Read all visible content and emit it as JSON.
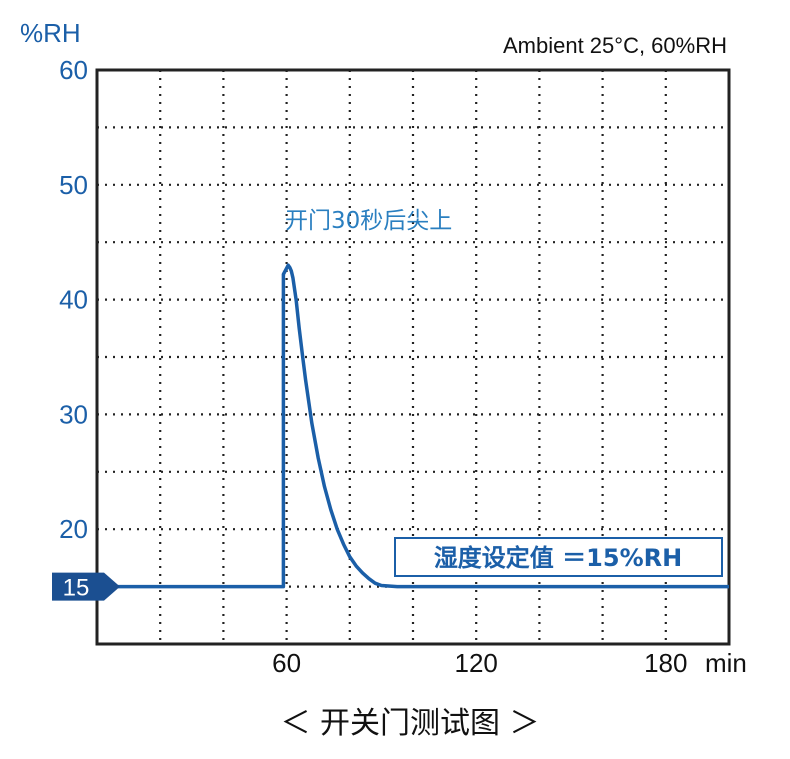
{
  "chart_data": {
    "type": "line",
    "y_unit_label": "%RH",
    "x_unit_label": "min",
    "ambient_note": "Ambient 25°C, 60%RH",
    "xlim": [
      0,
      200
    ],
    "ylim": [
      10,
      60
    ],
    "xticks": [
      60,
      120,
      180
    ],
    "yticks": [
      20,
      30,
      40,
      50,
      60
    ],
    "x_gridlines": [
      20,
      40,
      60,
      80,
      100,
      120,
      140,
      160,
      180
    ],
    "y_gridlines": [
      15,
      20,
      25,
      30,
      35,
      40,
      45,
      50,
      55
    ],
    "grid": true,
    "series": [
      {
        "color": "#1b5fa8",
        "x": [
          0,
          59,
          59,
          60.5,
          61,
          61.5,
          62,
          62,
          63,
          64,
          65,
          66,
          68,
          70,
          72,
          74,
          76,
          78,
          80,
          82,
          84,
          86,
          88,
          90,
          95,
          200
        ],
        "y": [
          15,
          15,
          42.2,
          43,
          42.8,
          42.5,
          41.9,
          41.9,
          40.0,
          37.5,
          35.2,
          33.0,
          29.2,
          26.2,
          23.7,
          21.7,
          20.0,
          18.7,
          17.6,
          16.8,
          16.2,
          15.7,
          15.3,
          15.1,
          15,
          15
        ]
      }
    ],
    "annotation_peak": "开门30秒后尖上",
    "setpoint_label": "湿度设定值 ＝15%RH",
    "setpoint_value": 15,
    "setpoint_marker_label": "15"
  },
  "caption": "＜ 开关门测试图 ＞"
}
